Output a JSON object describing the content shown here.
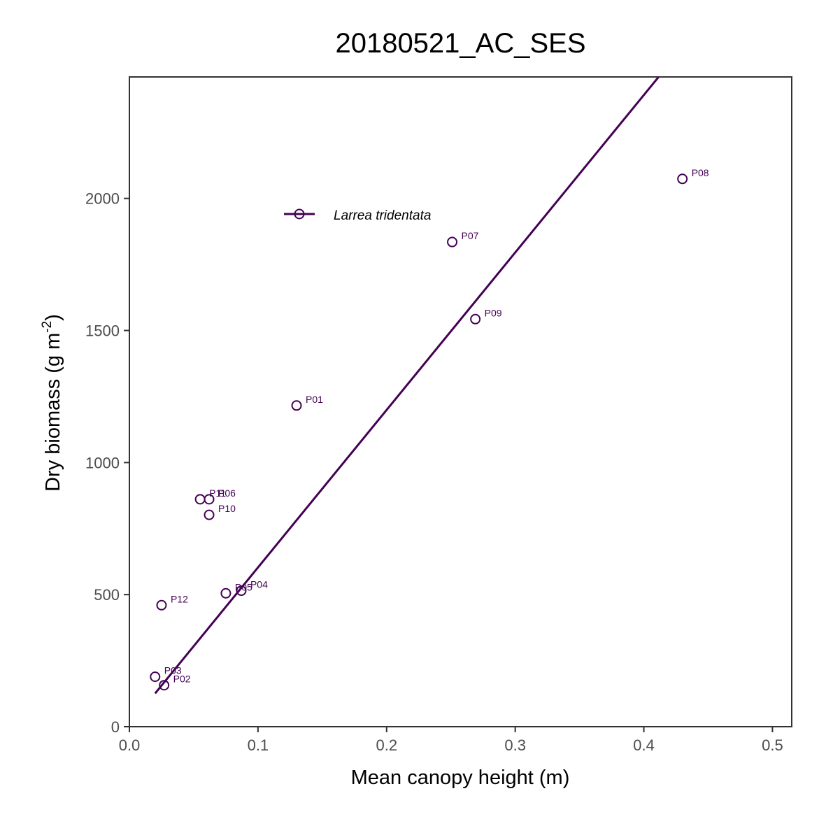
{
  "chart_data": {
    "type": "scatter",
    "title": "20180521_AC_SES",
    "xlabel": "Mean canopy height (m)",
    "ylabel_main": "Dry biomass (g m",
    "ylabel_sup": "-2",
    "ylabel_close": ")",
    "xlim": [
      0.0,
      0.515
    ],
    "ylim": [
      0,
      2460
    ],
    "x_ticks": [
      0.0,
      0.1,
      0.2,
      0.3,
      0.4,
      0.5
    ],
    "x_tick_labels": [
      "0.0",
      "0.1",
      "0.2",
      "0.3",
      "0.4",
      "0.5"
    ],
    "y_ticks": [
      0,
      500,
      1000,
      1500,
      2000
    ],
    "y_tick_labels": [
      "0",
      "500",
      "1000",
      "1500",
      "2000"
    ],
    "grid": false,
    "legend_placement": "top-left",
    "series": [
      {
        "name": "Larrea tridentata",
        "color": "#440154",
        "points": [
          {
            "label": "P01",
            "x": 0.13,
            "y": 1216
          },
          {
            "label": "P02",
            "x": 0.027,
            "y": 157
          },
          {
            "label": "P03",
            "x": 0.02,
            "y": 189
          },
          {
            "label": "P04",
            "x": 0.087,
            "y": 515
          },
          {
            "label": "P05",
            "x": 0.075,
            "y": 505
          },
          {
            "label": "P06",
            "x": 0.062,
            "y": 861
          },
          {
            "label": "P07",
            "x": 0.251,
            "y": 1835
          },
          {
            "label": "P08",
            "x": 0.43,
            "y": 2074
          },
          {
            "label": "P09",
            "x": 0.269,
            "y": 1543
          },
          {
            "label": "P10",
            "x": 0.062,
            "y": 802
          },
          {
            "label": "P11",
            "x": 0.055,
            "y": 861
          },
          {
            "label": "P12",
            "x": 0.025,
            "y": 460
          }
        ],
        "fit_line": {
          "x": [
            0.02,
            0.4115
          ],
          "y": [
            126,
            2460
          ]
        }
      }
    ]
  }
}
